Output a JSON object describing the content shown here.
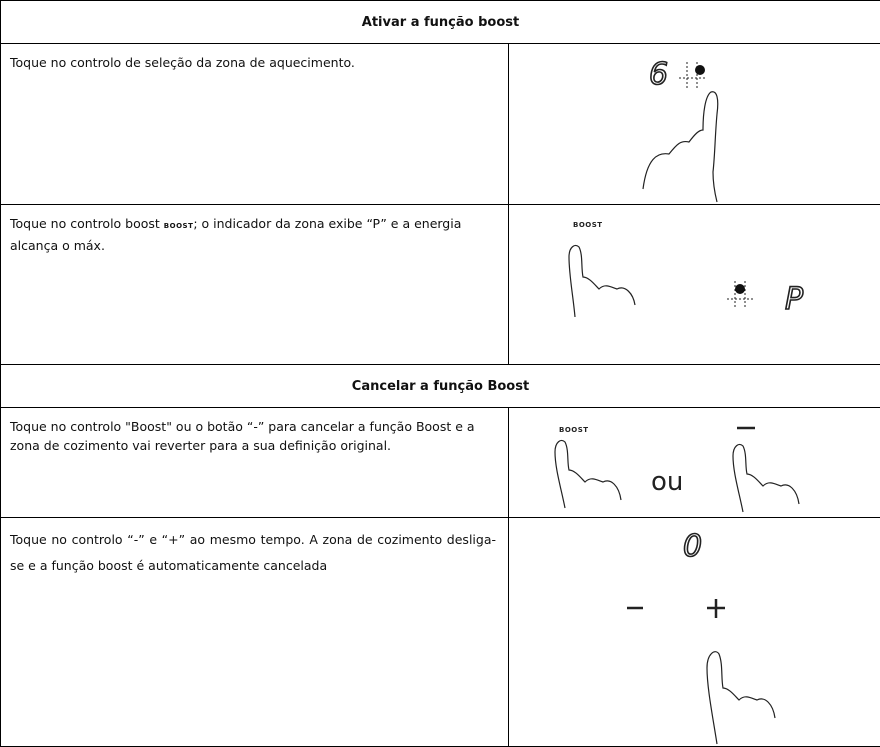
{
  "sections": [
    {
      "title": "Ativar a função boost",
      "rows": [
        {
          "text": "Toque no controlo de seleção da zona de aquecimento.",
          "figure": {
            "digit": "6"
          }
        },
        {
          "text_before": "Toque no controlo boost ",
          "inline_label": "BOOST",
          "text_after": "; o indicador da zona exibe “P” e a energia alcança o máx.",
          "figure": {
            "label": "BOOST",
            "digit": "P"
          }
        }
      ]
    },
    {
      "title": "Cancelar a função Boost",
      "rows": [
        {
          "text": "Toque no controlo \"Boost\" ou o botão “-” para cancelar a função Boost e a zona de cozimento vai reverter para a sua definição original.",
          "figure": {
            "label": "BOOST",
            "connector": "ou"
          }
        },
        {
          "text": "Toque no controlo “-” e “+” ao mesmo tempo. A zona de cozimento desliga-se e a função boost é automaticamente cancelada",
          "figure": {
            "digit": "0"
          }
        }
      ]
    }
  ]
}
